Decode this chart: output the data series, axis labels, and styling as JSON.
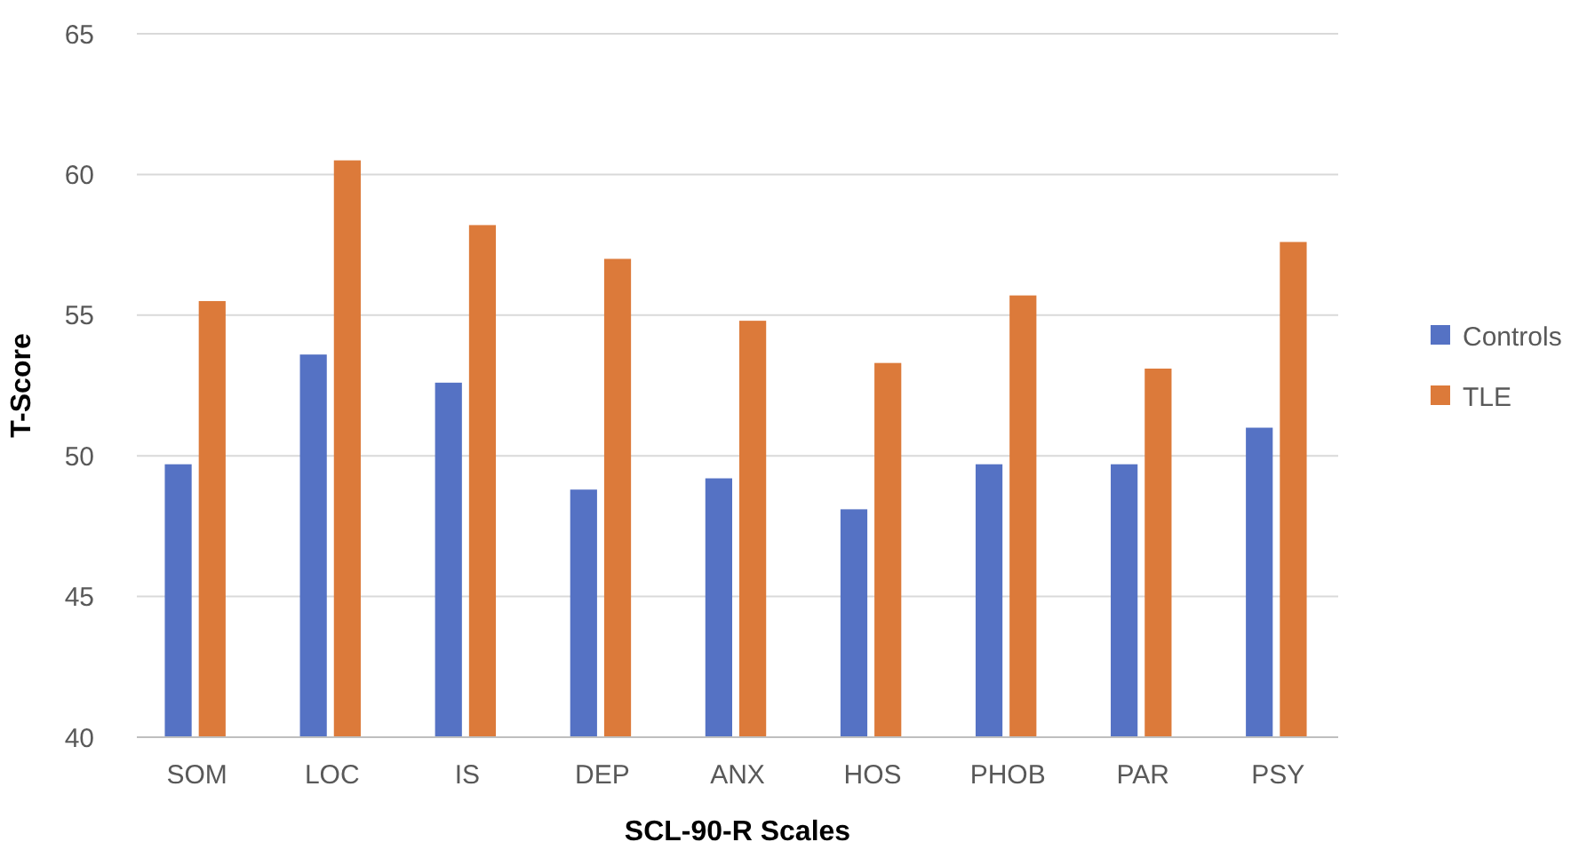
{
  "chart_data": {
    "type": "bar",
    "xlabel": "SCL-90-R Scales",
    "ylabel": "T-Score",
    "categories": [
      "SOM",
      "LOC",
      "IS",
      "DEP",
      "ANX",
      "HOS",
      "PHOB",
      "PAR",
      "PSY"
    ],
    "series": [
      {
        "name": "Controls",
        "color": "#5572c4",
        "values": [
          49.7,
          53.6,
          52.6,
          48.8,
          49.2,
          48.1,
          49.7,
          49.7,
          51.0
        ]
      },
      {
        "name": "TLE",
        "color": "#dc7a3a",
        "values": [
          55.5,
          60.5,
          58.2,
          57.0,
          54.8,
          53.3,
          55.7,
          53.1,
          57.6
        ]
      }
    ],
    "ylim": [
      40,
      65
    ],
    "yticks": [
      40,
      45,
      50,
      55,
      60,
      65
    ],
    "grid": "y",
    "legend": "right"
  }
}
